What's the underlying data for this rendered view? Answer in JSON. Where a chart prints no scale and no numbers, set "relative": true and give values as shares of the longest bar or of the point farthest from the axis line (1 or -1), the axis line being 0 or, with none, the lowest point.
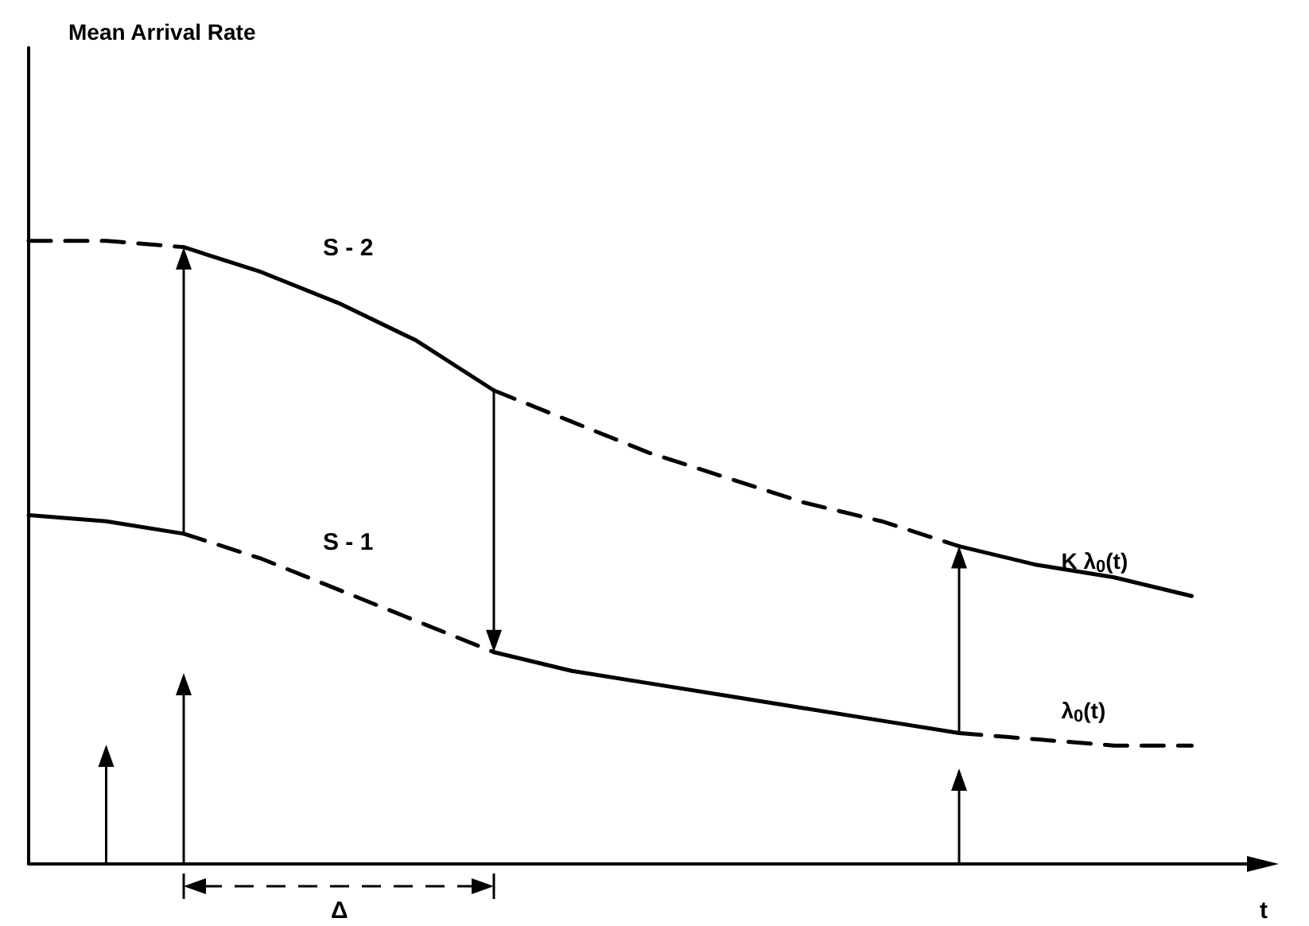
{
  "chart_data": {
    "type": "line",
    "relative": true,
    "title": "Mean Arrival Rate",
    "xlabel": "t",
    "tick_labels": false,
    "grid": false,
    "legend": false,
    "marker": "none",
    "categories": [
      null,
      null,
      null,
      null,
      null,
      null,
      null,
      null,
      null,
      null,
      null,
      null,
      null,
      null,
      null,
      null,
      null
    ],
    "series": [
      {
        "color": "#000000",
        "line_style": "dashed",
        "values": [
          1.0,
          1.0,
          0.99,
          null,
          null,
          null,
          null,
          null,
          null,
          null,
          null,
          null,
          null,
          null,
          null,
          null,
          null
        ]
      },
      {
        "color": "#000000",
        "line_style": "solid",
        "values": [
          null,
          null,
          0.99,
          0.95,
          0.9,
          0.84,
          0.76,
          null,
          null,
          null,
          null,
          null,
          null,
          null,
          null,
          null,
          null
        ]
      },
      {
        "color": "#000000",
        "line_style": "dashed",
        "values": [
          null,
          null,
          null,
          null,
          null,
          null,
          0.76,
          0.71,
          0.66,
          0.62,
          0.58,
          0.55,
          0.51,
          null,
          null,
          null,
          null
        ]
      },
      {
        "name": "K λ$_{0}$(t)",
        "color": "#000000",
        "line_style": "solid",
        "values": [
          null,
          null,
          null,
          null,
          null,
          null,
          null,
          null,
          null,
          null,
          null,
          null,
          0.51,
          0.48,
          0.46,
          0.43,
          null
        ]
      },
      {
        "color": "#000000",
        "line_style": "solid",
        "values": [
          0.56,
          0.55,
          0.53,
          null,
          null,
          null,
          null,
          null,
          null,
          null,
          null,
          null,
          null,
          null,
          null,
          null,
          null
        ]
      },
      {
        "color": "#000000",
        "line_style": "dashed",
        "values": [
          null,
          null,
          0.53,
          0.49,
          0.44,
          0.39,
          0.34,
          null,
          null,
          null,
          null,
          null,
          null,
          null,
          null,
          null,
          null
        ]
      },
      {
        "color": "#000000",
        "line_style": "solid",
        "values": [
          null,
          null,
          null,
          null,
          null,
          null,
          0.34,
          0.31,
          0.29,
          0.27,
          0.25,
          0.23,
          0.21,
          null,
          null,
          null,
          null
        ]
      },
      {
        "name": "λ$_{0}$(t)",
        "color": "#000000",
        "line_style": "dashed",
        "values": [
          null,
          null,
          null,
          null,
          null,
          null,
          null,
          null,
          null,
          null,
          null,
          null,
          0.21,
          0.2,
          0.19,
          0.19,
          null
        ]
      }
    ],
    "annotations": [
      "S - 2",
      "S - 1",
      "Δ"
    ]
  }
}
